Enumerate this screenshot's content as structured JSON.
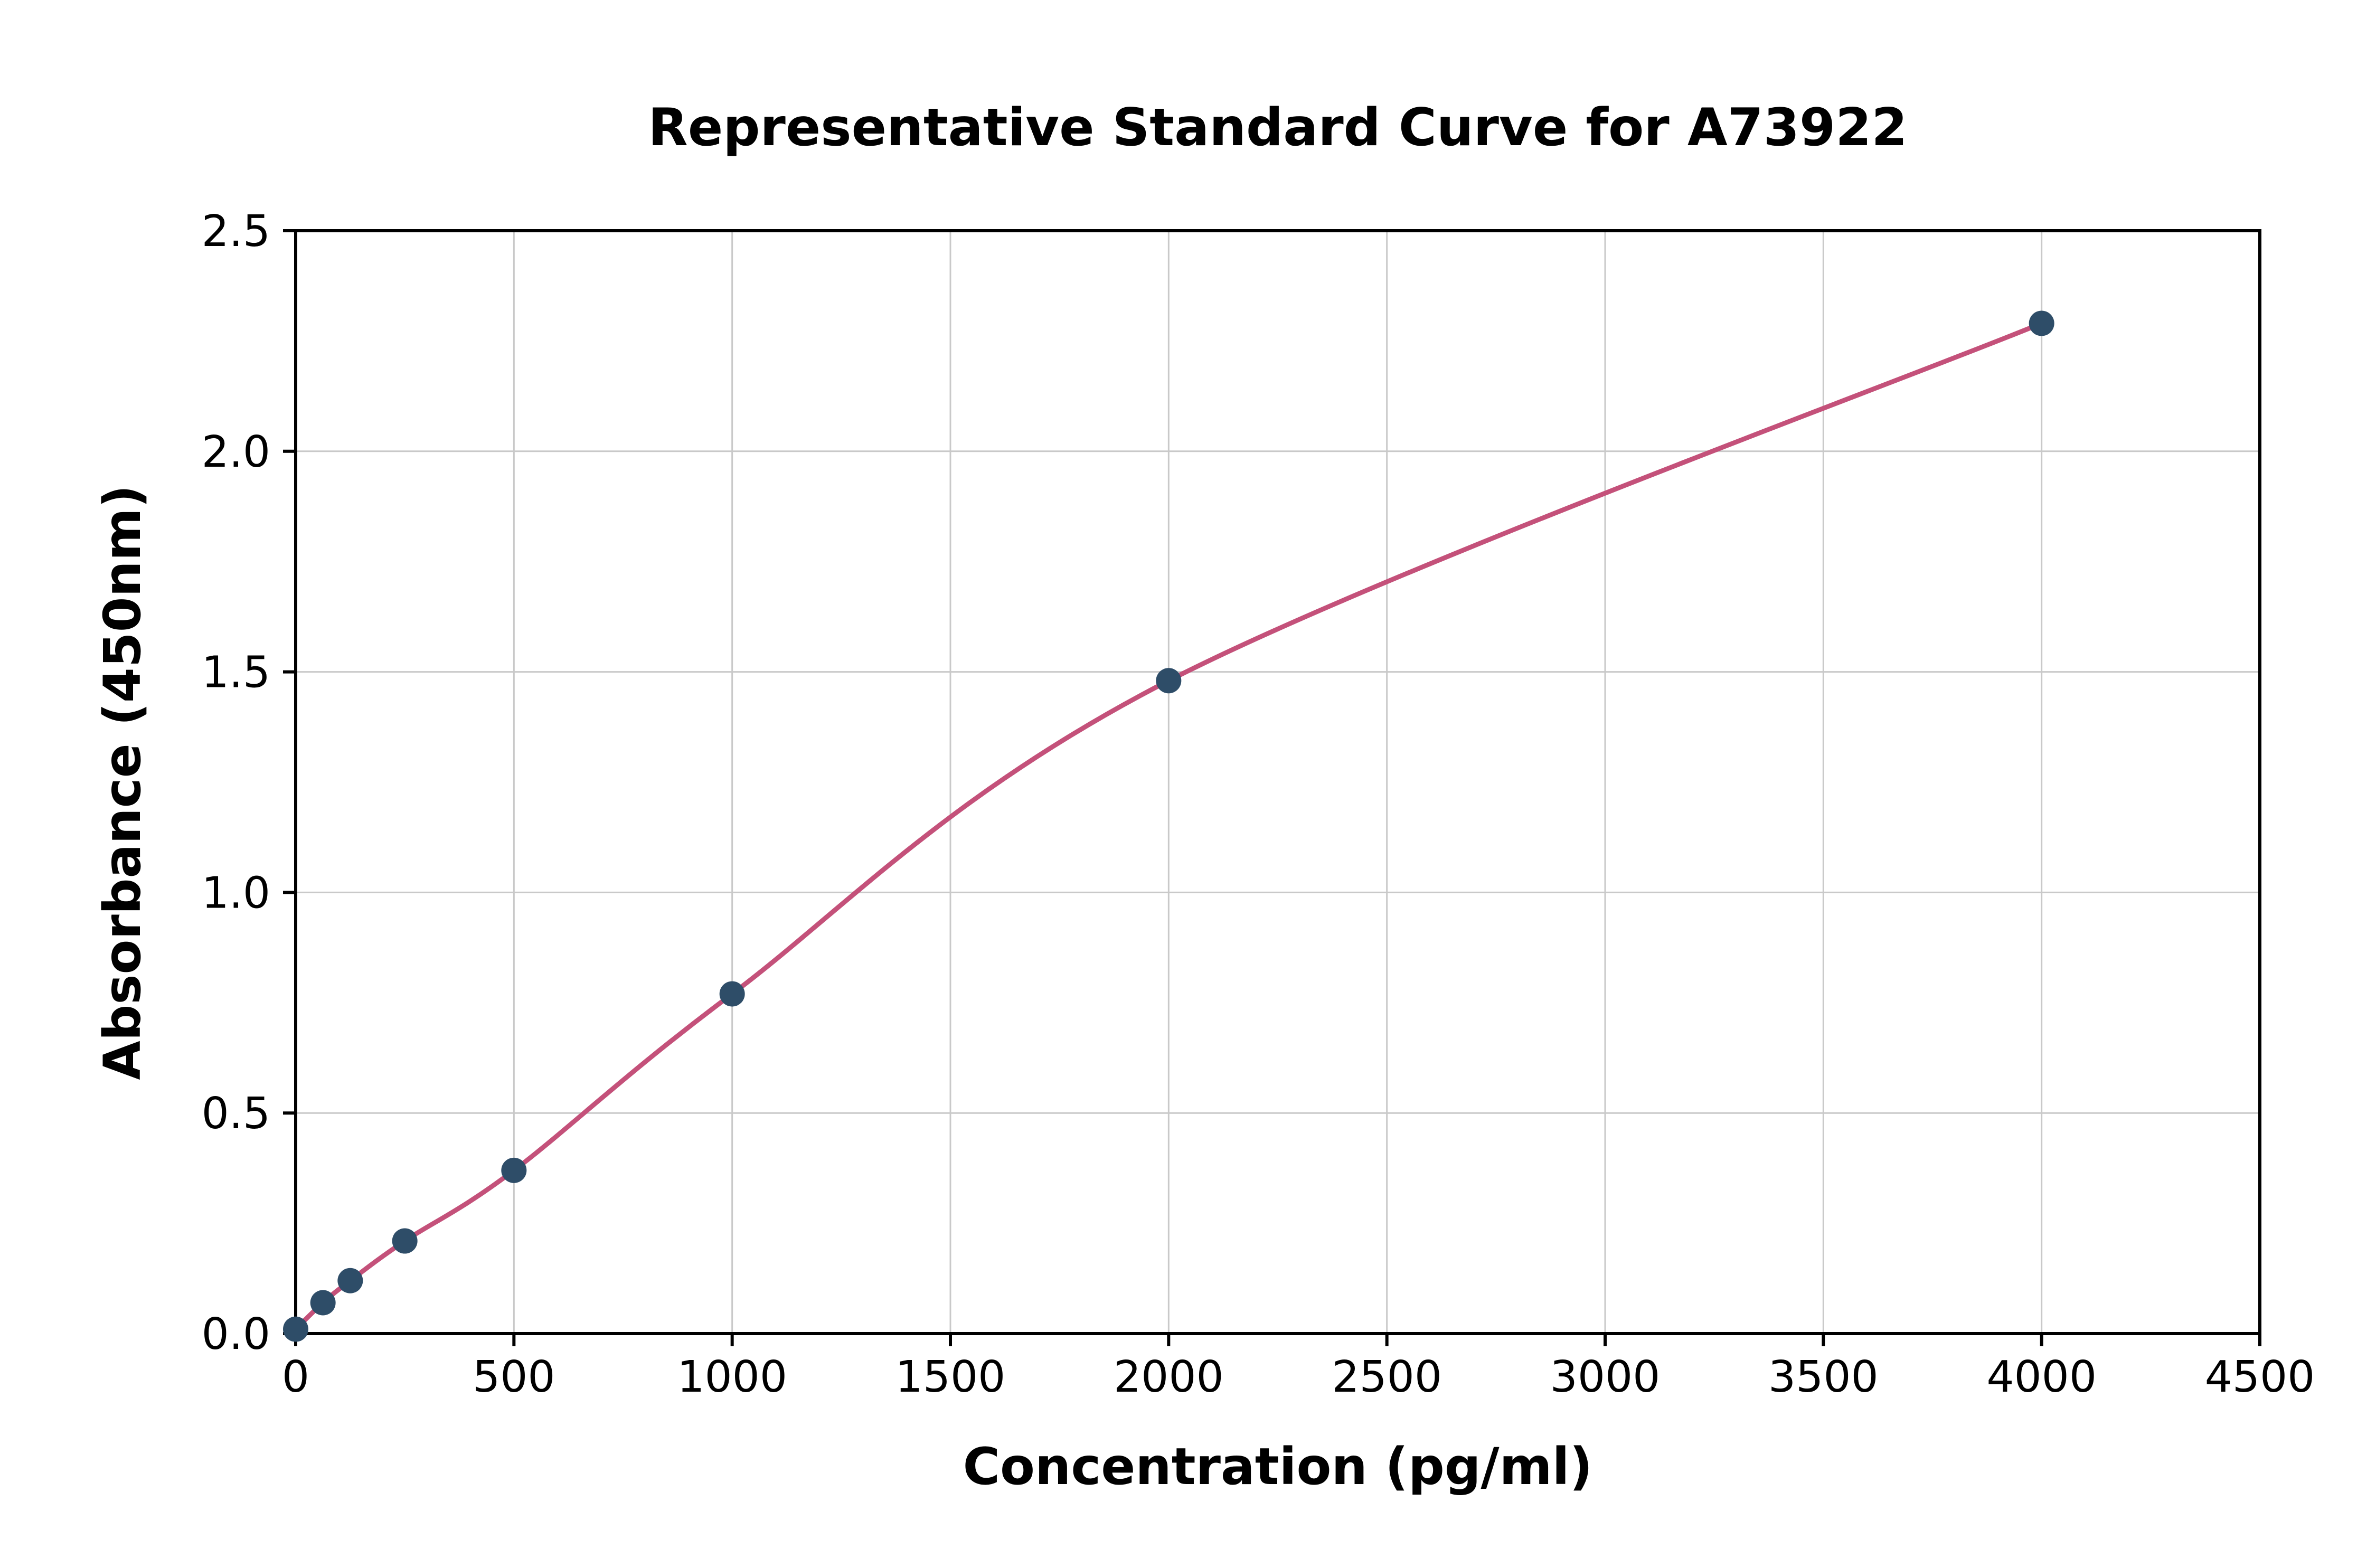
{
  "page": {
    "background_color": "#ffffff"
  },
  "chart_data": {
    "type": "scatter",
    "curve": "smooth-fit-through-points",
    "title": "Representative Standard Curve for A73922",
    "xlabel": "Concentration (pg/ml)",
    "ylabel": "Absorbance (450nm)",
    "xlim": [
      0,
      4500
    ],
    "ylim": [
      0,
      2.5
    ],
    "xticks": [
      0,
      500,
      1000,
      1500,
      2000,
      2500,
      3000,
      3500,
      4000,
      4500
    ],
    "xticklabels": [
      "0",
      "500",
      "1000",
      "1500",
      "2000",
      "2500",
      "3000",
      "3500",
      "4000",
      "4500"
    ],
    "yticks": [
      0,
      0.5,
      1.0,
      1.5,
      2.0,
      2.5
    ],
    "yticklabels": [
      "0.0",
      "0.5",
      "1.0",
      "1.5",
      "2.0",
      "2.5"
    ],
    "grid": true,
    "grid_color": "#c9c9c9",
    "axis_color": "#000000",
    "curve_color": "#c4517a",
    "point_color": "#2e4d68",
    "series": [
      {
        "name": "standards",
        "points": [
          {
            "x": 0,
            "y": 0.01
          },
          {
            "x": 62.5,
            "y": 0.07
          },
          {
            "x": 125,
            "y": 0.12
          },
          {
            "x": 250,
            "y": 0.21
          },
          {
            "x": 500,
            "y": 0.37
          },
          {
            "x": 1000,
            "y": 0.77
          },
          {
            "x": 2000,
            "y": 1.48
          },
          {
            "x": 4000,
            "y": 2.29
          }
        ]
      }
    ]
  }
}
